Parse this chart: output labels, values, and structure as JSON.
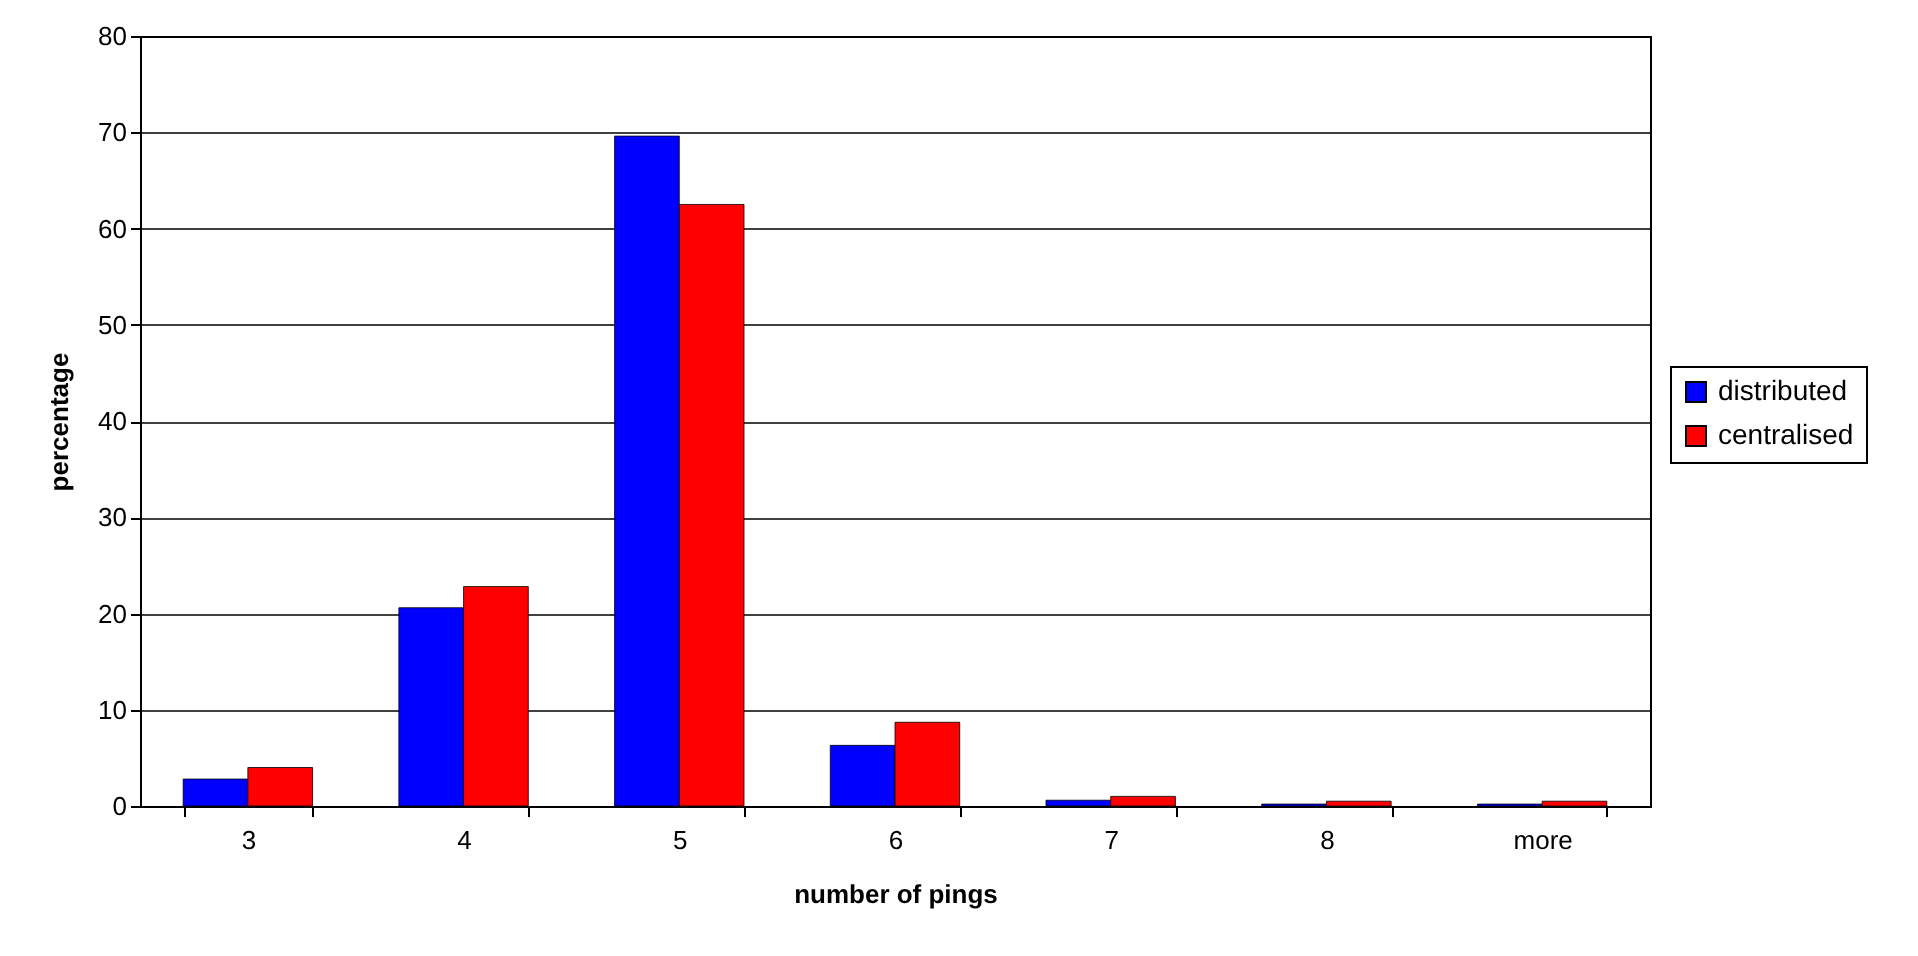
{
  "chart_data": {
    "type": "bar",
    "xlabel": "number of pings",
    "ylabel": "percentage",
    "categories": [
      "3",
      "4",
      "5",
      "6",
      "7",
      "8",
      "more"
    ],
    "series": [
      {
        "name": "distributed",
        "color": "#0000ff",
        "values": [
          2.8,
          20.6,
          69.6,
          6.3,
          0.6,
          0.2,
          0.2
        ]
      },
      {
        "name": "centralised",
        "color": "#ff0000",
        "values": [
          4.0,
          22.8,
          62.5,
          8.7,
          1.0,
          0.5,
          0.5
        ]
      }
    ],
    "ylim": [
      0,
      80
    ],
    "yticks": [
      0,
      10,
      20,
      30,
      40,
      50,
      60,
      70,
      80
    ],
    "grid": "y",
    "legend": "right"
  }
}
